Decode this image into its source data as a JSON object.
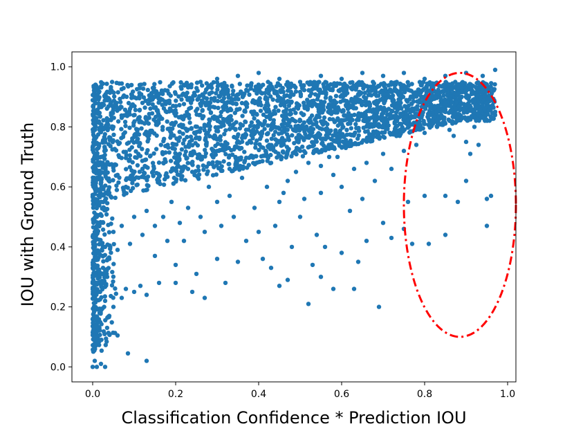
{
  "chart_data": {
    "type": "scatter",
    "title": "",
    "xlabel": "Classification Confidence * Prediction IOU",
    "ylabel": "IOU with Ground Truth",
    "xlim": [
      -0.05,
      1.02
    ],
    "ylim": [
      -0.05,
      1.05
    ],
    "xticks": [
      0.0,
      0.2,
      0.4,
      0.6,
      0.8,
      1.0
    ],
    "xtick_labels": [
      "0.0",
      "0.2",
      "0.4",
      "0.6",
      "0.8",
      "1.0"
    ],
    "yticks": [
      0.0,
      0.2,
      0.4,
      0.6,
      0.8,
      1.0
    ],
    "ytick_labels": [
      "0.0",
      "0.2",
      "0.4",
      "0.6",
      "0.8",
      "1.0"
    ],
    "grid": false,
    "legend": "none",
    "marker_color": "#1f77b4",
    "points": [
      [
        0.0,
        0.0
      ],
      [
        0.01,
        0.0
      ],
      [
        0.03,
        0.0
      ],
      [
        0.005,
        0.02
      ],
      [
        0.02,
        0.01
      ],
      [
        0.13,
        0.02
      ],
      [
        0.085,
        0.045
      ],
      [
        0.06,
        0.105
      ],
      [
        0.005,
        0.1
      ],
      [
        0.012,
        0.13
      ],
      [
        0.01,
        0.16
      ],
      [
        0.02,
        0.19
      ],
      [
        0.03,
        0.22
      ],
      [
        0.04,
        0.17
      ],
      [
        0.05,
        0.2
      ],
      [
        0.07,
        0.23
      ],
      [
        0.08,
        0.26
      ],
      [
        0.1,
        0.25
      ],
      [
        0.115,
        0.27
      ],
      [
        0.13,
        0.24
      ],
      [
        0.16,
        0.28
      ],
      [
        0.2,
        0.28
      ],
      [
        0.24,
        0.25
      ],
      [
        0.27,
        0.23
      ],
      [
        0.32,
        0.28
      ],
      [
        0.3,
        0.36
      ],
      [
        0.25,
        0.31
      ],
      [
        0.2,
        0.34
      ],
      [
        0.15,
        0.37
      ],
      [
        0.18,
        0.42
      ],
      [
        0.35,
        0.35
      ],
      [
        0.37,
        0.42
      ],
      [
        0.41,
        0.36
      ],
      [
        0.43,
        0.33
      ],
      [
        0.45,
        0.27
      ],
      [
        0.47,
        0.29
      ],
      [
        0.52,
        0.21
      ],
      [
        0.53,
        0.34
      ],
      [
        0.55,
        0.3
      ],
      [
        0.58,
        0.26
      ],
      [
        0.63,
        0.26
      ],
      [
        0.69,
        0.2
      ],
      [
        0.64,
        0.35
      ],
      [
        0.6,
        0.38
      ],
      [
        0.56,
        0.4
      ],
      [
        0.48,
        0.4
      ],
      [
        0.44,
        0.47
      ],
      [
        0.5,
        0.5
      ],
      [
        0.54,
        0.44
      ],
      [
        0.66,
        0.42
      ],
      [
        0.7,
        0.48
      ],
      [
        0.75,
        0.46
      ],
      [
        0.77,
        0.41
      ],
      [
        0.72,
        0.43
      ],
      [
        0.76,
        0.55
      ],
      [
        0.8,
        0.57
      ],
      [
        0.81,
        0.41
      ],
      [
        0.85,
        0.44
      ],
      [
        0.85,
        0.57
      ],
      [
        0.88,
        0.55
      ],
      [
        0.9,
        0.62
      ],
      [
        0.95,
        0.56
      ],
      [
        0.96,
        0.57
      ],
      [
        0.95,
        0.47
      ],
      [
        0.91,
        0.71
      ],
      [
        0.9,
        0.75
      ],
      [
        0.86,
        0.79
      ],
      [
        0.8,
        0.78
      ],
      [
        0.75,
        0.72
      ],
      [
        0.72,
        0.66
      ],
      [
        0.68,
        0.62
      ],
      [
        0.65,
        0.56
      ],
      [
        0.62,
        0.52
      ],
      [
        0.6,
        0.6
      ],
      [
        0.58,
        0.64
      ],
      [
        0.55,
        0.58
      ],
      [
        0.51,
        0.56
      ],
      [
        0.47,
        0.62
      ],
      [
        0.45,
        0.55
      ],
      [
        0.42,
        0.6
      ],
      [
        0.39,
        0.53
      ],
      [
        0.36,
        0.63
      ],
      [
        0.33,
        0.57
      ],
      [
        0.3,
        0.55
      ],
      [
        0.28,
        0.6
      ],
      [
        0.26,
        0.5
      ],
      [
        0.23,
        0.53
      ],
      [
        0.21,
        0.48
      ],
      [
        0.19,
        0.55
      ],
      [
        0.17,
        0.5
      ],
      [
        0.15,
        0.47
      ],
      [
        0.13,
        0.52
      ],
      [
        0.12,
        0.44
      ],
      [
        0.1,
        0.5
      ],
      [
        0.09,
        0.41
      ],
      [
        0.07,
        0.47
      ],
      [
        0.06,
        0.39
      ],
      [
        0.05,
        0.45
      ],
      [
        0.04,
        0.36
      ],
      [
        0.03,
        0.4
      ],
      [
        0.025,
        0.33
      ],
      [
        0.015,
        0.38
      ],
      [
        0.01,
        0.28
      ],
      [
        0.018,
        0.25
      ],
      [
        0.035,
        0.3
      ],
      [
        0.22,
        0.42
      ],
      [
        0.27,
        0.45
      ],
      [
        0.31,
        0.47
      ],
      [
        0.34,
        0.5
      ],
      [
        0.4,
        0.45
      ],
      [
        0.46,
        0.58
      ],
      [
        0.49,
        0.65
      ],
      [
        0.52,
        0.68
      ],
      [
        0.57,
        0.7
      ],
      [
        0.61,
        0.73
      ],
      [
        0.67,
        0.76
      ],
      [
        0.7,
        0.71
      ],
      [
        0.74,
        0.77
      ],
      [
        0.78,
        0.74
      ],
      [
        0.83,
        0.8
      ],
      [
        0.87,
        0.77
      ],
      [
        0.92,
        0.8
      ],
      [
        0.94,
        0.83
      ],
      [
        0.97,
        0.85
      ],
      [
        0.93,
        0.74
      ],
      [
        0.88,
        0.83
      ],
      [
        0.84,
        0.84
      ],
      [
        0.79,
        0.83
      ],
      [
        0.73,
        0.82
      ],
      [
        0.69,
        0.8
      ],
      [
        0.66,
        0.68
      ],
      [
        0.63,
        0.66
      ],
      [
        0.59,
        0.7
      ],
      [
        0.55,
        0.67
      ],
      [
        0.5,
        0.72
      ],
      [
        0.43,
        0.68
      ],
      [
        0.38,
        0.7
      ],
      [
        0.33,
        0.66
      ],
      [
        0.29,
        0.72
      ],
      [
        0.24,
        0.65
      ],
      [
        0.2,
        0.68
      ],
      [
        0.16,
        0.62
      ],
      [
        0.12,
        0.66
      ],
      [
        0.08,
        0.6
      ],
      [
        0.06,
        0.64
      ],
      [
        0.04,
        0.58
      ],
      [
        0.02,
        0.55
      ],
      [
        0.01,
        0.5
      ],
      [
        0.005,
        0.45
      ],
      [
        0.008,
        0.62
      ],
      [
        0.02,
        0.7
      ],
      [
        0.03,
        0.75
      ],
      [
        0.05,
        0.8
      ],
      [
        0.07,
        0.83
      ],
      [
        0.09,
        0.86
      ],
      [
        0.12,
        0.88
      ],
      [
        0.15,
        0.9
      ],
      [
        0.18,
        0.92
      ],
      [
        0.22,
        0.94
      ],
      [
        0.26,
        0.95
      ],
      [
        0.3,
        0.96
      ],
      [
        0.35,
        0.97
      ],
      [
        0.4,
        0.98
      ],
      [
        0.45,
        0.96
      ],
      [
        0.5,
        0.95
      ],
      [
        0.55,
        0.97
      ],
      [
        0.6,
        0.96
      ],
      [
        0.65,
        0.98
      ],
      [
        0.7,
        0.97
      ],
      [
        0.75,
        0.98
      ],
      [
        0.8,
        0.96
      ],
      [
        0.85,
        0.97
      ],
      [
        0.9,
        0.98
      ],
      [
        0.94,
        0.97
      ],
      [
        0.97,
        0.99
      ]
    ],
    "dense_region": {
      "description_hidden": true,
      "x_range": [
        0.0,
        0.97
      ],
      "y_low_at_x0": 0.55,
      "y_low_at_x1": 0.82,
      "y_high": 0.95
    },
    "annotation": {
      "shape": "ellipse",
      "style": "dash-dot",
      "color": "#ff0000",
      "center": [
        0.885,
        0.54
      ],
      "radius_x": 0.135,
      "radius_y": 0.44
    }
  }
}
